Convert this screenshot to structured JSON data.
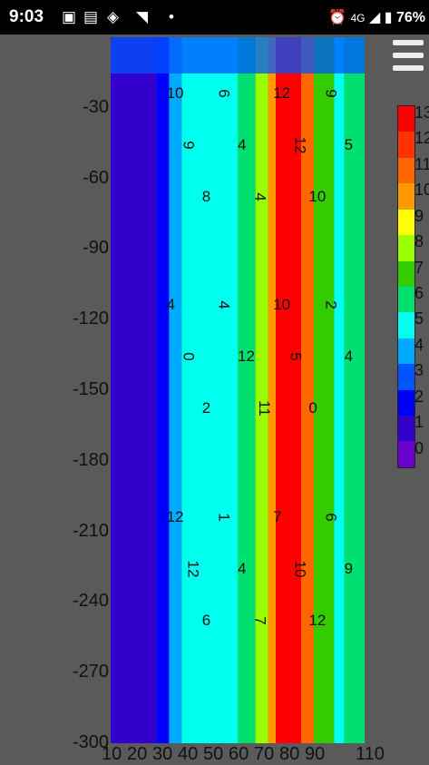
{
  "status": {
    "time": "9:03",
    "battery": "76%",
    "network": "4G"
  },
  "chart_data": {
    "type": "heatmap",
    "title": "",
    "xlabel": "",
    "ylabel": "",
    "x_ticks": [
      "10",
      "20",
      "30",
      "40",
      "50",
      "60",
      "70",
      "80",
      "90",
      "110"
    ],
    "y_ticks": [
      "-30",
      "-60",
      "-90",
      "-120",
      "-150",
      "-180",
      "-210",
      "-240",
      "-270",
      "-300"
    ],
    "xlim": [
      10,
      110
    ],
    "ylim": [
      -300,
      0
    ],
    "colorbar_labels": [
      "13",
      "12",
      "11",
      "10",
      "9",
      "8",
      "7",
      "6",
      "5",
      "4",
      "3",
      "2",
      "1",
      "0"
    ],
    "colorbar_colors": [
      "#ff0000",
      "#ff3300",
      "#ff6600",
      "#ff9900",
      "#ffff00",
      "#99ff00",
      "#33cc00",
      "#00e070",
      "#00ffee",
      "#00aaff",
      "#0055ff",
      "#0000ff",
      "#3300cc",
      "#6a00cc"
    ],
    "columns": [
      {
        "x0": 10,
        "x1": 28,
        "value": 0.5
      },
      {
        "x0": 28,
        "x1": 33,
        "value": 2
      },
      {
        "x0": 33,
        "x1": 38,
        "value": 4
      },
      {
        "x0": 38,
        "x1": 60,
        "value": 5
      },
      {
        "x0": 60,
        "x1": 67,
        "value": 6
      },
      {
        "x0": 67,
        "x1": 72,
        "value": 8
      },
      {
        "x0": 72,
        "x1": 75,
        "value": 10
      },
      {
        "x0": 75,
        "x1": 85,
        "value": 12.5
      },
      {
        "x0": 85,
        "x1": 90,
        "value": 11
      },
      {
        "x0": 90,
        "x1": 98,
        "value": 7
      },
      {
        "x0": 98,
        "x1": 102,
        "value": 5
      },
      {
        "x0": 102,
        "x1": 110,
        "value": 6
      }
    ],
    "contour_labels": [
      "10",
      "9",
      "8",
      "6",
      "4",
      "4",
      "12",
      "12",
      "10",
      "9",
      "5",
      "4",
      "0",
      "2",
      "4",
      "12",
      "11",
      "10",
      "5",
      "0",
      "2",
      "4",
      "12",
      "12",
      "6",
      "1",
      "4",
      "7",
      "7",
      "10",
      "12",
      "6",
      "9"
    ]
  }
}
